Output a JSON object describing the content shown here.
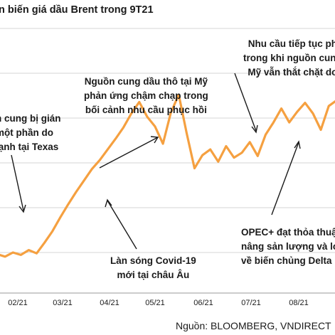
{
  "chart_data": {
    "type": "line",
    "title": "n biến giá dầu Brent trong 9T21",
    "xlabel": "",
    "ylabel": "",
    "x_ticks": [
      "02/21",
      "03/21",
      "04/21",
      "05/21",
      "06/21",
      "07/21",
      "08/21"
    ],
    "grid": "horizontal",
    "series": [
      {
        "color": "#f5a040",
        "x": [
          0,
          3,
          6,
          9,
          12,
          15,
          18,
          21,
          24,
          27,
          30,
          33,
          36,
          39,
          42,
          45,
          48,
          51,
          54,
          57,
          60,
          63,
          66,
          69,
          72,
          75,
          78,
          81,
          84,
          87,
          90,
          93,
          96,
          99,
          102,
          105,
          108,
          111,
          114,
          117,
          120,
          123,
          126,
          129,
          132,
          135,
          138,
          141,
          144,
          147,
          150,
          153,
          156,
          159,
          162,
          165,
          168,
          171,
          174,
          177,
          180,
          183,
          186,
          189,
          192,
          195,
          198,
          201,
          204,
          207,
          210,
          213,
          216,
          219,
          222,
          225,
          228,
          231,
          234,
          237,
          240,
          243,
          246,
          249,
          252,
          255
        ],
        "values": [
          50.8,
          50.5,
          51.0,
          50.7,
          51.3,
          50.9,
          52.2,
          53.6,
          55.3,
          56.9,
          58.4,
          59.8,
          61.2,
          62.3,
          63.6,
          64.9,
          66.3,
          68.0,
          69.4,
          67.6,
          66.4,
          64.3,
          68.1,
          70.3,
          65.6,
          61.3,
          62.9,
          63.6,
          62.1,
          64.0,
          62.6,
          63.2,
          64.5,
          62.8,
          65.4,
          66.9,
          68.6,
          66.9,
          68.2,
          69.3,
          68.0,
          66.0,
          68.9,
          69.6,
          69.8,
          68.7,
          70.6,
          71.8,
          71.2,
          72.1,
          71.1,
          72.5,
          73.9,
          72.8,
          74.6,
          75.4,
          74.2,
          76.0,
          75.4,
          74.1,
          76.5,
          77.2,
          75.6,
          74.8,
          73.6,
          76.6,
          74.8,
          72.3,
          72.8,
          68.6,
          69.7,
          73.1,
          74.2,
          75.0,
          71.5,
          70.0,
          71.4,
          70.0,
          67.4,
          70.5,
          71.6,
          71.0,
          67.7,
          66.0,
          71.3,
          73.0
        ]
      }
    ]
  },
  "annotations": {
    "supply_texas": [
      "n cung bị gián",
      "một phần do",
      "lạnh tại Texas"
    ],
    "us_supply": [
      "Nguồn cung dầu thô tại Mỹ",
      "phản ứng chậm chạp trong",
      "bối cảnh nhu cầu phục hồi"
    ],
    "demand": [
      "Nhu cầu tiếp tục ph",
      "trong khi nguồn cung",
      "Mỹ vẫn thắt chặt do"
    ],
    "covid": [
      "Làn sóng Covid-19",
      "mới tại châu Âu"
    ],
    "opec": [
      "OPEC+ đạt thỏa thuận",
      "nâng sản lượng và lo n",
      "về biến chủng Delta"
    ]
  },
  "source": "Nguồn: BLOOMBERG, VNDIRECT"
}
